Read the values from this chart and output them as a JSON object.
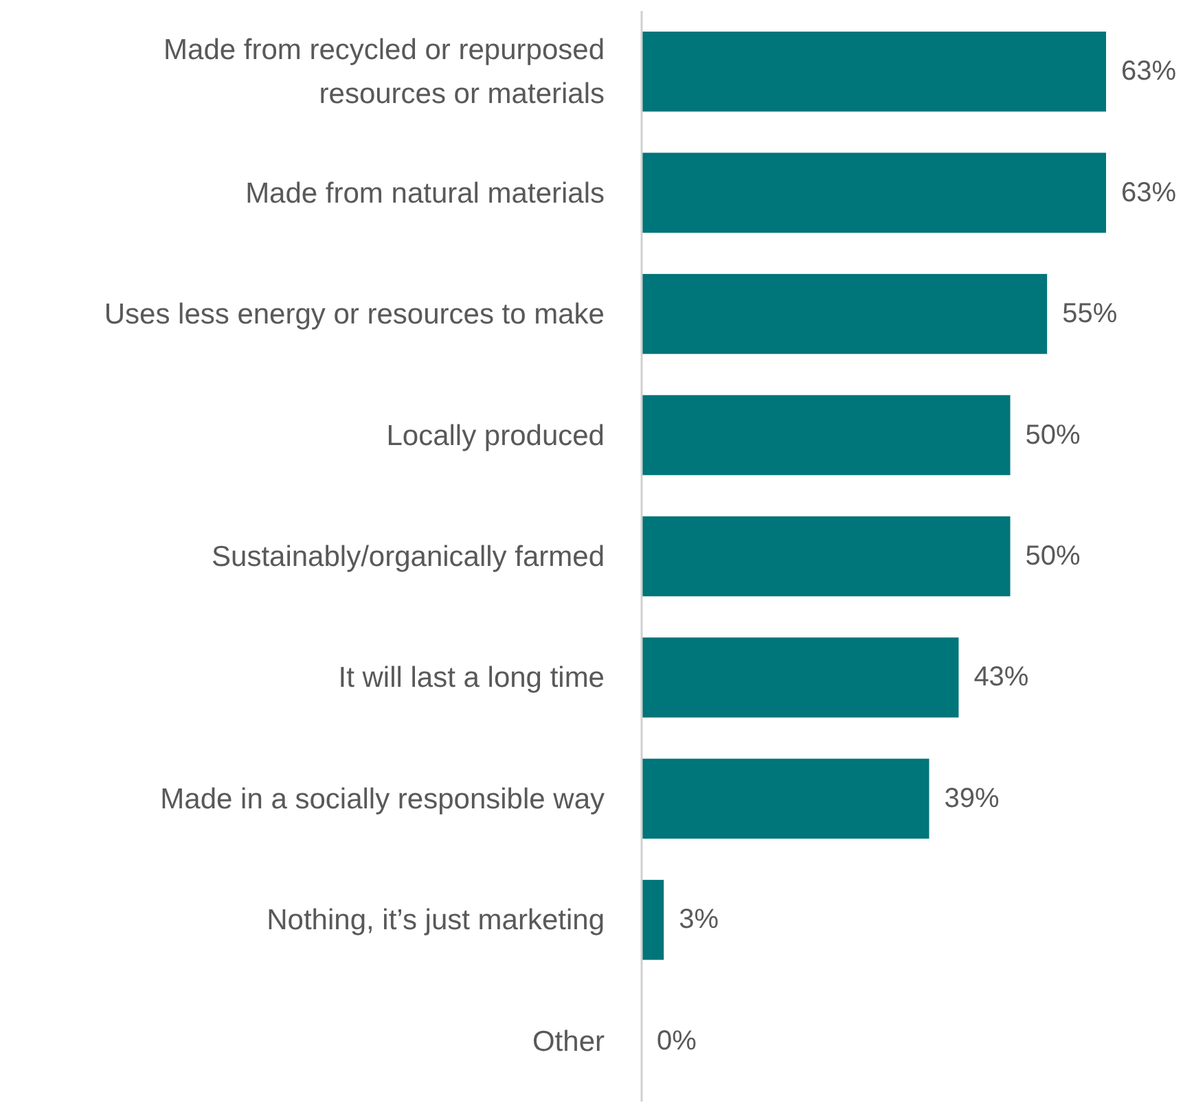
{
  "chart_data": {
    "type": "bar",
    "orientation": "horizontal",
    "categories": [
      "Made from recycled or repurposed\nresources or materials",
      "Made from natural materials",
      "Uses less energy or resources to make",
      "Locally produced",
      "Sustainably/organically farmed",
      "It will last a long time",
      "Made in a socially responsible way",
      "Nothing, it’s just marketing",
      "Other"
    ],
    "values": [
      63,
      63,
      55,
      50,
      50,
      43,
      39,
      3,
      0
    ],
    "value_labels": [
      "63%",
      "63%",
      "55%",
      "50%",
      "50%",
      "43%",
      "39%",
      "3%",
      "0%"
    ],
    "color": "#00757a"
  }
}
